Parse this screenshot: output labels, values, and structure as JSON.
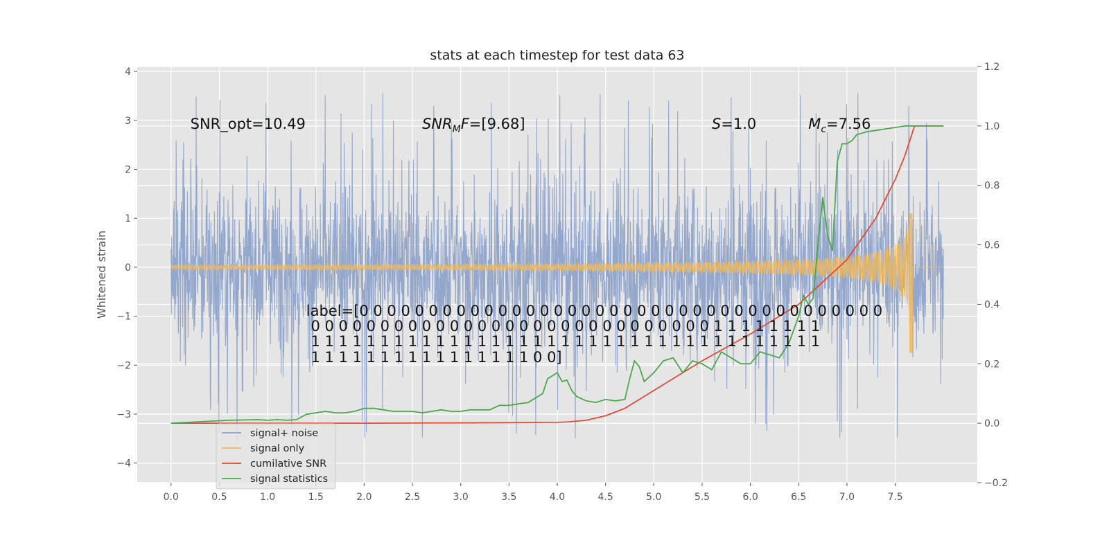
{
  "chart_data": {
    "type": "line",
    "title": "stats at each timestep for test data 63",
    "ylabel": "Whitened strain",
    "xlim": [
      -0.35,
      8.35
    ],
    "ylim": [
      -4.4,
      4.1
    ],
    "y2lim": [
      -0.2,
      1.2
    ],
    "grid": true,
    "x_ticks": [
      "0.0",
      "0.5",
      "1.0",
      "1.5",
      "2.0",
      "2.5",
      "3.0",
      "3.5",
      "4.0",
      "4.5",
      "5.0",
      "5.5",
      "6.0",
      "6.5",
      "7.0",
      "7.5"
    ],
    "y_ticks": [
      "4",
      "3",
      "2",
      "1",
      "0",
      "−1",
      "−2",
      "−3",
      "−4"
    ],
    "y2_ticks": [
      "1.2",
      "1.0",
      "0.8",
      "0.6",
      "0.4",
      "0.2",
      "0.0",
      "−0.2"
    ],
    "noise": {
      "x_start": 0.0,
      "x_end": 8.0,
      "typical_amplitude": 1.4,
      "max_amplitude": 3.6,
      "min_value": -3.9
    },
    "signal": {
      "x_start": 0.0,
      "x_end": 8.0,
      "merger_x": 7.68,
      "peak_amplitude": 1.1,
      "min_value": -1.75
    },
    "cumulative_snr": {
      "axis": "right",
      "x": [
        0.0,
        1.0,
        2.0,
        3.0,
        4.0,
        4.1,
        4.3,
        4.5,
        4.7,
        5.0,
        5.5,
        6.0,
        6.5,
        7.0,
        7.3,
        7.5,
        7.6,
        7.65,
        7.7,
        8.0
      ],
      "values": [
        0.0,
        0.0,
        0.0,
        0.001,
        0.003,
        0.004,
        0.01,
        0.025,
        0.05,
        0.11,
        0.21,
        0.3,
        0.4,
        0.55,
        0.69,
        0.82,
        0.9,
        0.95,
        1.0,
        1.0
      ]
    },
    "signal_statistics": {
      "axis": "right",
      "x": [
        0.0,
        0.3,
        0.6,
        0.9,
        1.0,
        1.1,
        1.2,
        1.3,
        1.4,
        1.5,
        1.6,
        1.7,
        1.8,
        1.9,
        2.0,
        2.1,
        2.2,
        2.3,
        2.4,
        2.5,
        2.6,
        2.7,
        2.8,
        2.9,
        3.0,
        3.1,
        3.2,
        3.3,
        3.4,
        3.5,
        3.6,
        3.7,
        3.8,
        3.85,
        3.9,
        4.0,
        4.05,
        4.1,
        4.15,
        4.2,
        4.3,
        4.4,
        4.5,
        4.6,
        4.7,
        4.75,
        4.8,
        4.85,
        4.9,
        5.0,
        5.05,
        5.1,
        5.2,
        5.3,
        5.4,
        5.5,
        5.6,
        5.7,
        5.8,
        5.9,
        6.0,
        6.1,
        6.2,
        6.3,
        6.4,
        6.5,
        6.55,
        6.6,
        6.65,
        6.7,
        6.75,
        6.8,
        6.85,
        6.9,
        6.95,
        7.0,
        7.05,
        7.1,
        7.2,
        7.3,
        7.4,
        7.5,
        7.6,
        7.7,
        8.0
      ],
      "values": [
        0.0,
        0.005,
        0.01,
        0.012,
        0.01,
        0.012,
        0.01,
        0.012,
        0.03,
        0.035,
        0.04,
        0.035,
        0.035,
        0.04,
        0.05,
        0.05,
        0.045,
        0.04,
        0.04,
        0.04,
        0.035,
        0.04,
        0.045,
        0.04,
        0.04,
        0.045,
        0.045,
        0.045,
        0.06,
        0.06,
        0.065,
        0.07,
        0.09,
        0.1,
        0.15,
        0.17,
        0.14,
        0.145,
        0.11,
        0.09,
        0.075,
        0.07,
        0.08,
        0.075,
        0.08,
        0.15,
        0.21,
        0.19,
        0.14,
        0.17,
        0.19,
        0.21,
        0.22,
        0.17,
        0.21,
        0.2,
        0.18,
        0.24,
        0.22,
        0.2,
        0.2,
        0.24,
        0.23,
        0.22,
        0.27,
        0.36,
        0.43,
        0.4,
        0.42,
        0.6,
        0.76,
        0.63,
        0.58,
        0.88,
        0.94,
        0.94,
        0.95,
        0.97,
        0.98,
        0.985,
        0.99,
        0.995,
        1.0,
        1.0,
        1.0
      ]
    },
    "legend": {
      "position": "lower left",
      "entries": [
        {
          "label": "signal+ noise",
          "color": "#8ea2c9"
        },
        {
          "label": "signal only",
          "color": "#eeb95f"
        },
        {
          "label": "cumilative SNR",
          "color": "#e24a33"
        },
        {
          "label": "signal statistics",
          "color": "#4aa84a"
        }
      ]
    },
    "annotations": {
      "snr_opt": "SNR_opt=10.49",
      "snr_mf": "SNR",
      "snr_mf_sub": "M",
      "snr_mf_f": "F",
      "snr_mf_val": "=[9.68]",
      "s_var": "S",
      "s_val": "=1.0",
      "mc_var": "M",
      "mc_sub": "c",
      "mc_val": "=7.56",
      "label_lines": [
        "label=[0 0 0 0 0 0 0 0 0 0 0 0 0 0 0 0 0 0 0 0 0 0 0 0 0 0 0 0 0 0 0 0 0 0 0 0 0 0",
        " 0 0 0 0 0 0 0 0 0 0 0 0 0 0 0 0 0 0 0 0 0 0 0 0 0 0 0 0 0 1 1 1 1 1 1 1 1",
        " 1 1 1 1 1 1 1 1 1 1 1 1 1 1 1 1 1 1 1 1 1 1 1 1 1 1 1 1 1 1 1 1 1 1 1 1 1",
        " 1 1 1 1 1 1 1 1 1 1 1 1 1 1 1 1 0 0]"
      ]
    },
    "colors": {
      "background": "#e5e5e5",
      "grid": "#ffffff",
      "noise": "#8ea2c9",
      "signal": "#eeb95f",
      "cumulative_snr": "#e24a33",
      "signal_statistics": "#4aa84a"
    }
  }
}
